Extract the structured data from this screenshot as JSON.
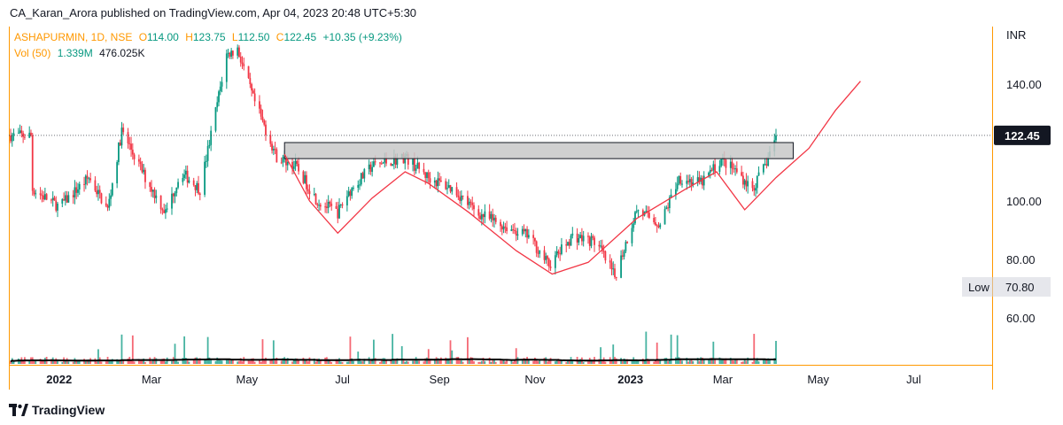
{
  "publisher_line": "CA_Karan_Arora published on TradingView.com, Apr 04, 2023 20:48 UTC+5:30",
  "legend": {
    "symbol": "ASHAPURMIN, 1D, NSE",
    "open_label": "O",
    "open": "114.00",
    "high_label": "H",
    "high": "123.75",
    "low_label": "L",
    "low": "112.50",
    "close_label": "C",
    "close": "122.45",
    "change": "+10.35 (+9.23%)",
    "vol_label": "Vol (50)",
    "vol": "1.339M",
    "vol_ma": "476.025K"
  },
  "price_axis": {
    "currency": "INR",
    "ticks": [
      "140.00",
      "100.00",
      "80.00",
      "60.00"
    ],
    "last_price_badge": "122.45",
    "low_badge_label": "Low",
    "low_badge_value": "70.80"
  },
  "time_axis": {
    "labels": [
      {
        "text": "2022",
        "bold": true
      },
      {
        "text": "Mar",
        "bold": false
      },
      {
        "text": "May",
        "bold": false
      },
      {
        "text": "Jul",
        "bold": false
      },
      {
        "text": "Sep",
        "bold": false
      },
      {
        "text": "Nov",
        "bold": false
      },
      {
        "text": "2023",
        "bold": true
      },
      {
        "text": "Mar",
        "bold": false
      },
      {
        "text": "May",
        "bold": false
      },
      {
        "text": "Jul",
        "bold": false
      }
    ]
  },
  "footer": {
    "brand": "TradingView"
  },
  "colors": {
    "up": "#089981",
    "down": "#f23645",
    "pattern": "#f23645",
    "zone_fill": "#c8c8c8",
    "vol_ma": "#000000",
    "accent": "#ff9800"
  },
  "chart_data": {
    "type": "candlestick",
    "symbol": "ASHAPURMIN",
    "interval": "1D",
    "exchange": "NSE",
    "y_range": [
      45,
      155
    ],
    "last_close": 122.45,
    "low": 70.8,
    "series_path": [
      {
        "date": "2021-12-15",
        "price": 104
      },
      {
        "date": "2022-01-01",
        "price": 98
      },
      {
        "date": "2022-01-20",
        "price": 108
      },
      {
        "date": "2022-02-01",
        "price": 97
      },
      {
        "date": "2022-02-10",
        "price": 124
      },
      {
        "date": "2022-02-25",
        "price": 108
      },
      {
        "date": "2022-03-10",
        "price": 96
      },
      {
        "date": "2022-03-20",
        "price": 110
      },
      {
        "date": "2022-04-01",
        "price": 104
      },
      {
        "date": "2022-04-10",
        "price": 128
      },
      {
        "date": "2022-04-18",
        "price": 150
      },
      {
        "date": "2022-04-25",
        "price": 152
      },
      {
        "date": "2022-05-05",
        "price": 135
      },
      {
        "date": "2022-05-20",
        "price": 115
      },
      {
        "date": "2022-06-01",
        "price": 112
      },
      {
        "date": "2022-06-15",
        "price": 100
      },
      {
        "date": "2022-06-28",
        "price": 96
      },
      {
        "date": "2022-07-05",
        "price": 103
      },
      {
        "date": "2022-07-20",
        "price": 112
      },
      {
        "date": "2022-08-10",
        "price": 115
      },
      {
        "date": "2022-08-25",
        "price": 108
      },
      {
        "date": "2022-09-10",
        "price": 104
      },
      {
        "date": "2022-09-25",
        "price": 96
      },
      {
        "date": "2022-10-10",
        "price": 92
      },
      {
        "date": "2022-10-28",
        "price": 88
      },
      {
        "date": "2022-11-10",
        "price": 78
      },
      {
        "date": "2022-11-25",
        "price": 88
      },
      {
        "date": "2022-12-10",
        "price": 86
      },
      {
        "date": "2022-12-22",
        "price": 74
      },
      {
        "date": "2023-01-05",
        "price": 97
      },
      {
        "date": "2023-01-20",
        "price": 92
      },
      {
        "date": "2023-02-01",
        "price": 108
      },
      {
        "date": "2023-02-15",
        "price": 106
      },
      {
        "date": "2023-02-28",
        "price": 114
      },
      {
        "date": "2023-03-10",
        "price": 110
      },
      {
        "date": "2023-03-20",
        "price": 104
      },
      {
        "date": "2023-03-28",
        "price": 112
      },
      {
        "date": "2023-04-04",
        "price": 122.45
      }
    ],
    "resistance_zone": {
      "from_date": "2022-05-25",
      "to_date": "2023-04-15",
      "low": 114.5,
      "high": 120
    }
  }
}
